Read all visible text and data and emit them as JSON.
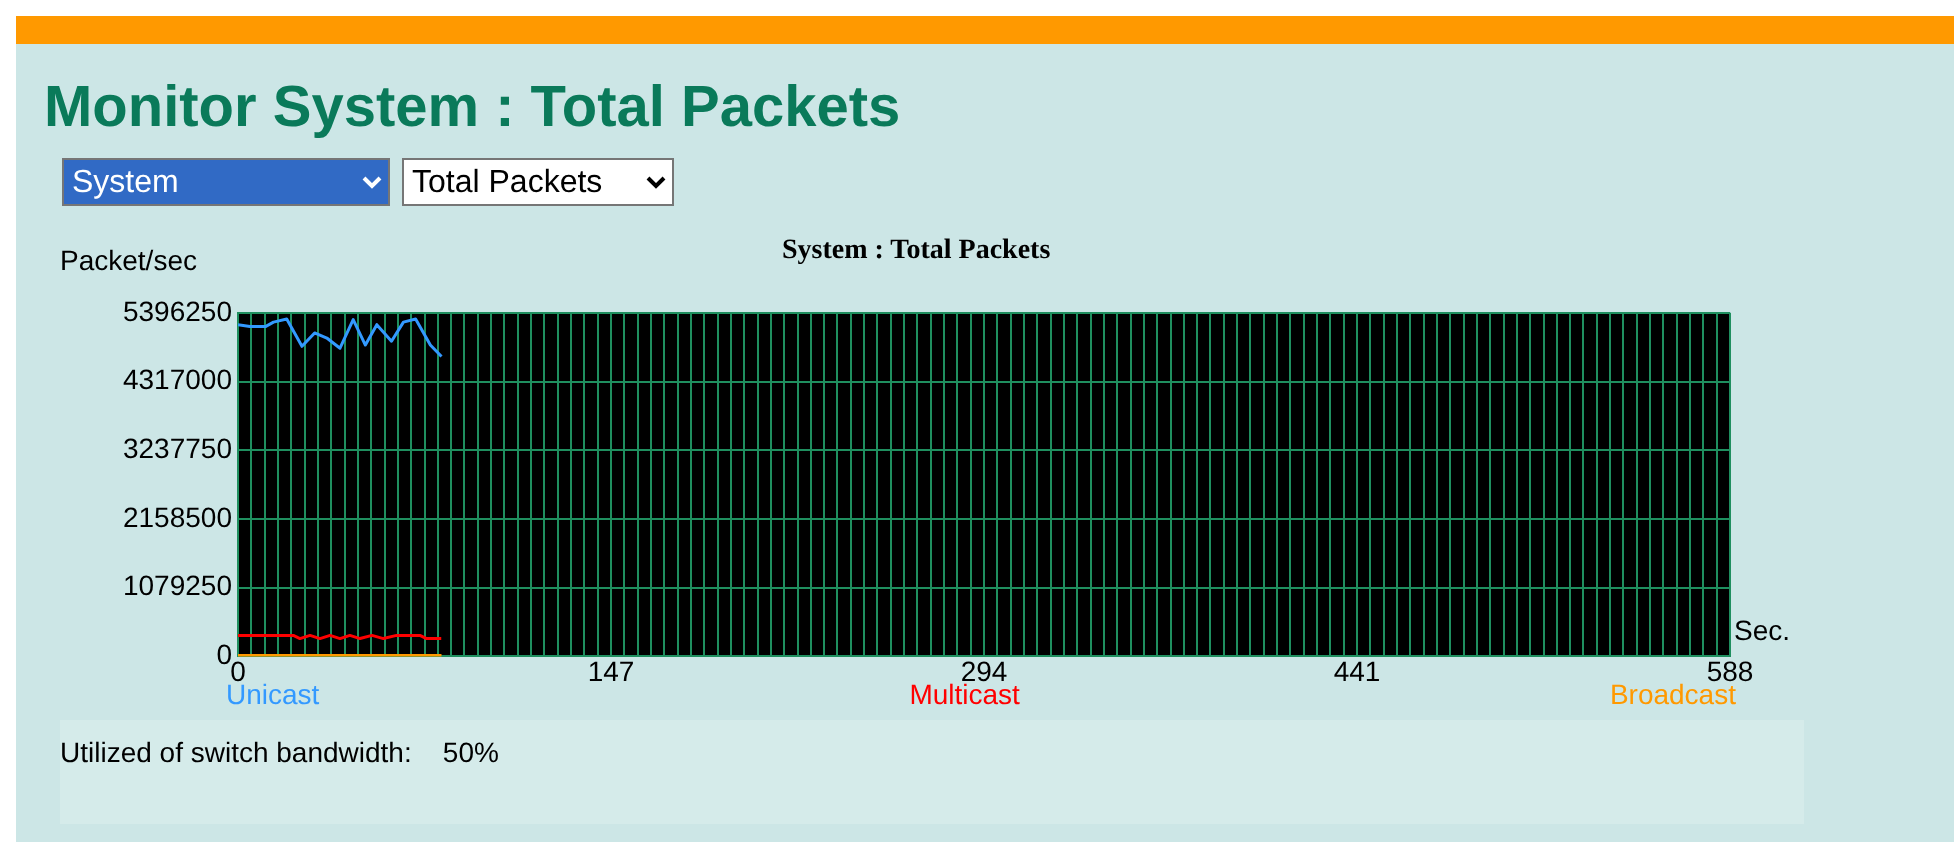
{
  "chart_data": {
    "type": "line",
    "title": "Monitor System : Total Packets",
    "subtitle": "System : Total Packets",
    "ylabel": "Packet/sec",
    "xlabel": "Sec.",
    "annotations": [
      "System",
      "Total Packets",
      "Utilized of switch bandwidth:    50%"
    ],
    "series": [
      {
        "name": "Unicast",
        "color": "#3399ff",
        "x": [
          0,
          4.7,
          10.8,
          14,
          19.2,
          25.2,
          30.2,
          35,
          40.2,
          45.4,
          50.2,
          54.7,
          60.5,
          65.2,
          70,
          75.8,
          80.2
        ],
        "values": [
          5210000,
          5180000,
          5180000,
          5250000,
          5300000,
          4870000,
          5080000,
          5000000,
          4840000,
          5290000,
          4890000,
          5210000,
          4950000,
          5250000,
          5300000,
          4890000,
          4710000
        ]
      },
      {
        "name": "Multicast",
        "color": "#ff0000",
        "x": [
          0,
          21.8,
          24.4,
          28.4,
          32.3,
          36.3,
          40.2,
          44.1,
          48.1,
          52.8,
          57.3,
          62.5,
          71.7,
          74.3,
          80.1
        ],
        "values": [
          330000,
          330000,
          280000,
          330000,
          280000,
          330000,
          280000,
          330000,
          280000,
          330000,
          280000,
          330000,
          330000,
          280000,
          280000
        ]
      },
      {
        "name": "Broadcast",
        "color": "#ff9900",
        "x": [
          0,
          80.2
        ],
        "values": [
          15000,
          15000
        ]
      }
    ],
    "xlim": [
      0,
      588
    ],
    "ylim": [
      0,
      5396250
    ],
    "yticks": [
      0,
      1079250,
      2158500,
      3237750,
      4317000,
      5396250
    ],
    "xticks": [
      0,
      {
        "value": 5.25,
        "label": null
      },
      {
        "value": 10.5,
        "label": null
      },
      {
        "value": 15.75,
        "label": null
      },
      {
        "value": 21,
        "label": null
      },
      {
        "value": 26.25,
        "label": null
      },
      {
        "value": 31.5,
        "label": null
      },
      {
        "value": 36.75,
        "label": null
      },
      {
        "value": 42,
        "label": null
      },
      {
        "value": 47.25,
        "label": null
      },
      {
        "value": 52.5,
        "label": null
      },
      {
        "value": 57.75,
        "label": null
      },
      {
        "value": 63,
        "label": null
      },
      {
        "value": 68.25,
        "label": null
      },
      {
        "value": 73.5,
        "label": null
      },
      {
        "value": 78.75,
        "label": null
      },
      {
        "value": 84,
        "label": null
      },
      {
        "value": 89.25,
        "label": null
      },
      {
        "value": 94.5,
        "label": null
      },
      {
        "value": 99.75,
        "label": null
      },
      {
        "value": 105,
        "label": null
      },
      {
        "value": 110.25,
        "label": null
      },
      {
        "value": 115.5,
        "label": null
      },
      {
        "value": 120.75,
        "label": null
      },
      {
        "value": 126,
        "label": null
      },
      {
        "value": 131.25,
        "label": null
      },
      {
        "value": 136.5,
        "label": null
      },
      {
        "value": 141.75,
        "label": null
      },
      147,
      {
        "value": 152.25,
        "label": null
      },
      {
        "value": 157.5,
        "label": null
      },
      {
        "value": 162.75,
        "label": null
      },
      {
        "value": 168,
        "label": null
      },
      {
        "value": 173.25,
        "label": null
      },
      {
        "value": 178.5,
        "label": null
      },
      {
        "value": 183.75,
        "label": null
      },
      {
        "value": 189,
        "label": null
      },
      {
        "value": 194.25,
        "label": null
      },
      {
        "value": 199.5,
        "label": null
      },
      {
        "value": 204.75,
        "label": null
      },
      {
        "value": 210,
        "label": null
      },
      {
        "value": 215.25,
        "label": null
      },
      {
        "value": 220.5,
        "label": null
      },
      {
        "value": 225.75,
        "label": null
      },
      {
        "value": 231,
        "label": null
      },
      {
        "value": 236.25,
        "label": null
      },
      {
        "value": 241.5,
        "label": null
      },
      {
        "value": 246.75,
        "label": null
      },
      {
        "value": 252,
        "label": null
      },
      {
        "value": 257.25,
        "label": null
      },
      {
        "value": 262.5,
        "label": null
      },
      {
        "value": 267.75,
        "label": null
      },
      {
        "value": 273,
        "label": null
      },
      {
        "value": 278.25,
        "label": null
      },
      {
        "value": 283.5,
        "label": null
      },
      {
        "value": 288.75,
        "label": null
      },
      294,
      {
        "value": 299.25,
        "label": null
      },
      {
        "value": 304.5,
        "label": null
      },
      {
        "value": 309.75,
        "label": null
      },
      {
        "value": 315,
        "label": null
      },
      {
        "value": 320.25,
        "label": null
      },
      {
        "value": 325.5,
        "label": null
      },
      {
        "value": 330.75,
        "label": null
      },
      {
        "value": 336,
        "label": null
      },
      {
        "value": 341.25,
        "label": null
      },
      {
        "value": 346.5,
        "label": null
      },
      {
        "value": 351.75,
        "label": null
      },
      {
        "value": 357,
        "label": null
      },
      {
        "value": 362.25,
        "label": null
      },
      {
        "value": 367.5,
        "label": null
      },
      {
        "value": 372.75,
        "label": null
      },
      {
        "value": 378,
        "label": null
      },
      {
        "value": 383.25,
        "label": null
      },
      {
        "value": 388.5,
        "label": null
      },
      {
        "value": 393.75,
        "label": null
      },
      {
        "value": 399,
        "label": null
      },
      {
        "value": 404.25,
        "label": null
      },
      {
        "value": 409.5,
        "label": null
      },
      {
        "value": 414.75,
        "label": null
      },
      {
        "value": 420,
        "label": null
      },
      {
        "value": 425.25,
        "label": null
      },
      {
        "value": 430.5,
        "label": null
      },
      {
        "value": 435.75,
        "label": null
      },
      441,
      {
        "value": 446.25,
        "label": null
      },
      {
        "value": 451.5,
        "label": null
      },
      {
        "value": 456.75,
        "label": null
      },
      {
        "value": 462,
        "label": null
      },
      {
        "value": 467.25,
        "label": null
      },
      {
        "value": 472.5,
        "label": null
      },
      {
        "value": 477.75,
        "label": null
      },
      {
        "value": 483,
        "label": null
      },
      {
        "value": 488.25,
        "label": null
      },
      {
        "value": 493.5,
        "label": null
      },
      {
        "value": 498.75,
        "label": null
      },
      {
        "value": 504,
        "label": null
      },
      {
        "value": 509.25,
        "label": null
      },
      {
        "value": 514.5,
        "label": null
      },
      {
        "value": 519.75,
        "label": null
      },
      {
        "value": 525,
        "label": null
      },
      {
        "value": 530.25,
        "label": null
      },
      {
        "value": 535.5,
        "label": null
      },
      {
        "value": 540.75,
        "label": null
      },
      {
        "value": 546,
        "label": null
      },
      {
        "value": 551.25,
        "label": null
      },
      {
        "value": 556.5,
        "label": null
      },
      {
        "value": 561.75,
        "label": null
      },
      {
        "value": 567,
        "label": null
      },
      {
        "value": 572.25,
        "label": null
      },
      {
        "value": 577.5,
        "label": null
      },
      {
        "value": 582.75,
        "label": null
      },
      588
    ],
    "grid": true,
    "legend": "bottom",
    "marker": "none",
    "line_style": "solid"
  }
}
